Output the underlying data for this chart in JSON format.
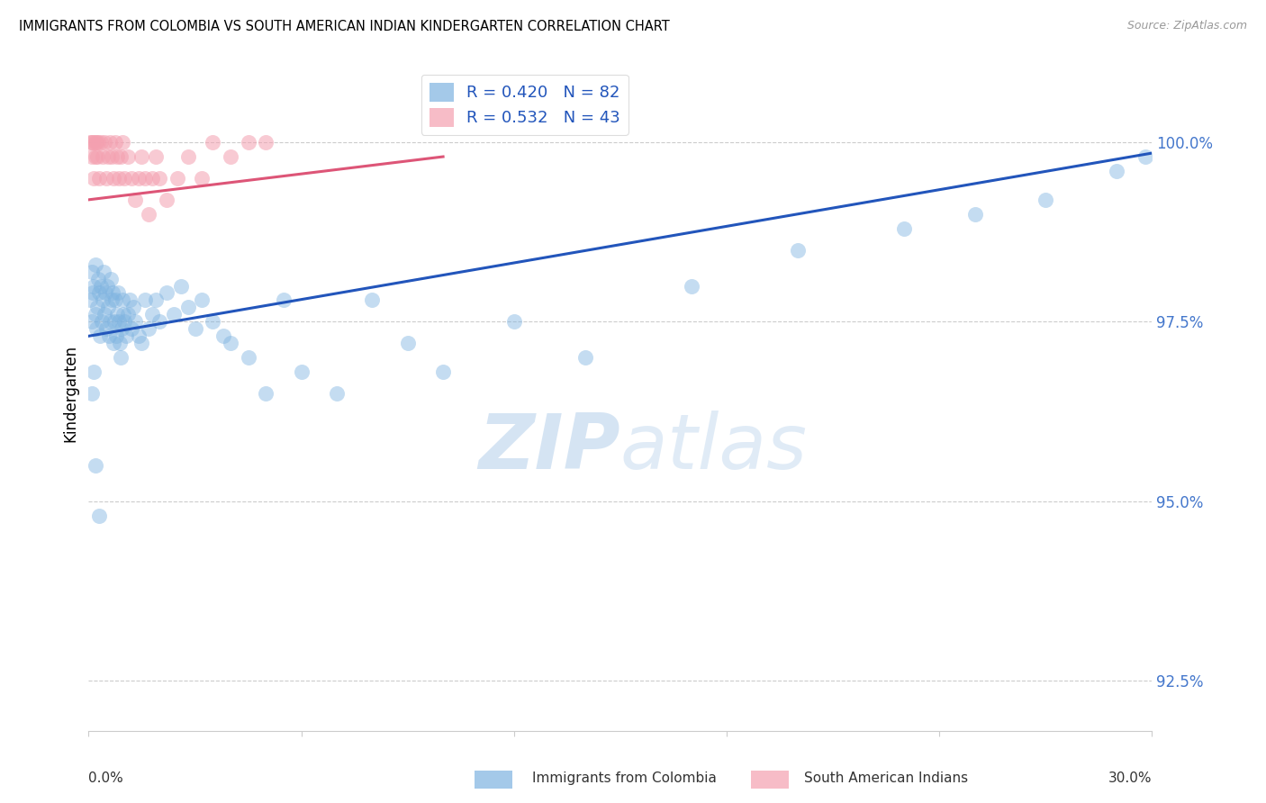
{
  "title": "IMMIGRANTS FROM COLOMBIA VS SOUTH AMERICAN INDIAN KINDERGARTEN CORRELATION CHART",
  "source": "Source: ZipAtlas.com",
  "ylabel": "Kindergarten",
  "ytick_values": [
    92.5,
    95.0,
    97.5,
    100.0
  ],
  "xmin": 0.0,
  "xmax": 30.0,
  "ymin": 91.8,
  "ymax": 101.2,
  "blue_color": "#7EB3E0",
  "pink_color": "#F4A0B0",
  "line_blue": "#2255BB",
  "line_pink": "#DD5577",
  "colombia_x": [
    0.05,
    0.08,
    0.1,
    0.12,
    0.15,
    0.18,
    0.2,
    0.22,
    0.25,
    0.28,
    0.3,
    0.32,
    0.35,
    0.38,
    0.4,
    0.42,
    0.45,
    0.48,
    0.5,
    0.52,
    0.55,
    0.58,
    0.6,
    0.62,
    0.65,
    0.68,
    0.7,
    0.72,
    0.75,
    0.78,
    0.8,
    0.82,
    0.85,
    0.88,
    0.9,
    0.92,
    0.95,
    0.98,
    1.0,
    1.05,
    1.1,
    1.15,
    1.2,
    1.25,
    1.3,
    1.4,
    1.5,
    1.6,
    1.7,
    1.8,
    1.9,
    2.0,
    2.2,
    2.4,
    2.6,
    2.8,
    3.0,
    3.2,
    3.5,
    3.8,
    4.0,
    4.5,
    5.0,
    5.5,
    6.0,
    7.0,
    8.0,
    9.0,
    10.0,
    12.0,
    14.0,
    17.0,
    20.0,
    23.0,
    25.0,
    27.0,
    29.0,
    29.8,
    0.1,
    0.15,
    0.2,
    0.3
  ],
  "colombia_y": [
    97.8,
    97.5,
    98.2,
    97.9,
    98.0,
    97.6,
    98.3,
    97.4,
    97.7,
    98.1,
    97.9,
    97.3,
    98.0,
    97.5,
    97.8,
    98.2,
    97.6,
    97.9,
    97.4,
    98.0,
    97.7,
    97.3,
    97.5,
    98.1,
    97.8,
    97.9,
    97.2,
    97.5,
    97.8,
    97.3,
    97.6,
    97.9,
    97.5,
    97.2,
    97.0,
    97.4,
    97.8,
    97.6,
    97.5,
    97.3,
    97.6,
    97.8,
    97.4,
    97.7,
    97.5,
    97.3,
    97.2,
    97.8,
    97.4,
    97.6,
    97.8,
    97.5,
    97.9,
    97.6,
    98.0,
    97.7,
    97.4,
    97.8,
    97.5,
    97.3,
    97.2,
    97.0,
    96.5,
    97.8,
    96.8,
    96.5,
    97.8,
    97.2,
    96.8,
    97.5,
    97.0,
    98.0,
    98.5,
    98.8,
    99.0,
    99.2,
    99.6,
    99.8,
    96.5,
    96.8,
    95.5,
    94.8
  ],
  "india_x": [
    0.05,
    0.08,
    0.1,
    0.12,
    0.15,
    0.18,
    0.2,
    0.22,
    0.25,
    0.28,
    0.3,
    0.35,
    0.4,
    0.45,
    0.5,
    0.55,
    0.6,
    0.65,
    0.7,
    0.75,
    0.8,
    0.85,
    0.9,
    0.95,
    1.0,
    1.1,
    1.2,
    1.3,
    1.4,
    1.5,
    1.6,
    1.7,
    1.8,
    1.9,
    2.0,
    2.2,
    2.5,
    2.8,
    3.2,
    3.5,
    4.0,
    4.5,
    5.0
  ],
  "india_y": [
    100.0,
    99.8,
    100.0,
    100.0,
    99.5,
    100.0,
    99.8,
    100.0,
    99.8,
    100.0,
    99.5,
    100.0,
    99.8,
    100.0,
    99.5,
    99.8,
    100.0,
    99.8,
    99.5,
    100.0,
    99.8,
    99.5,
    99.8,
    100.0,
    99.5,
    99.8,
    99.5,
    99.2,
    99.5,
    99.8,
    99.5,
    99.0,
    99.5,
    99.8,
    99.5,
    99.2,
    99.5,
    99.8,
    99.5,
    100.0,
    99.8,
    100.0,
    100.0
  ],
  "blue_line_x0": 0.0,
  "blue_line_y0": 97.3,
  "blue_line_x1": 30.0,
  "blue_line_y1": 99.85,
  "pink_line_x0": 0.0,
  "pink_line_y0": 99.2,
  "pink_line_x1": 10.0,
  "pink_line_y1": 99.8
}
